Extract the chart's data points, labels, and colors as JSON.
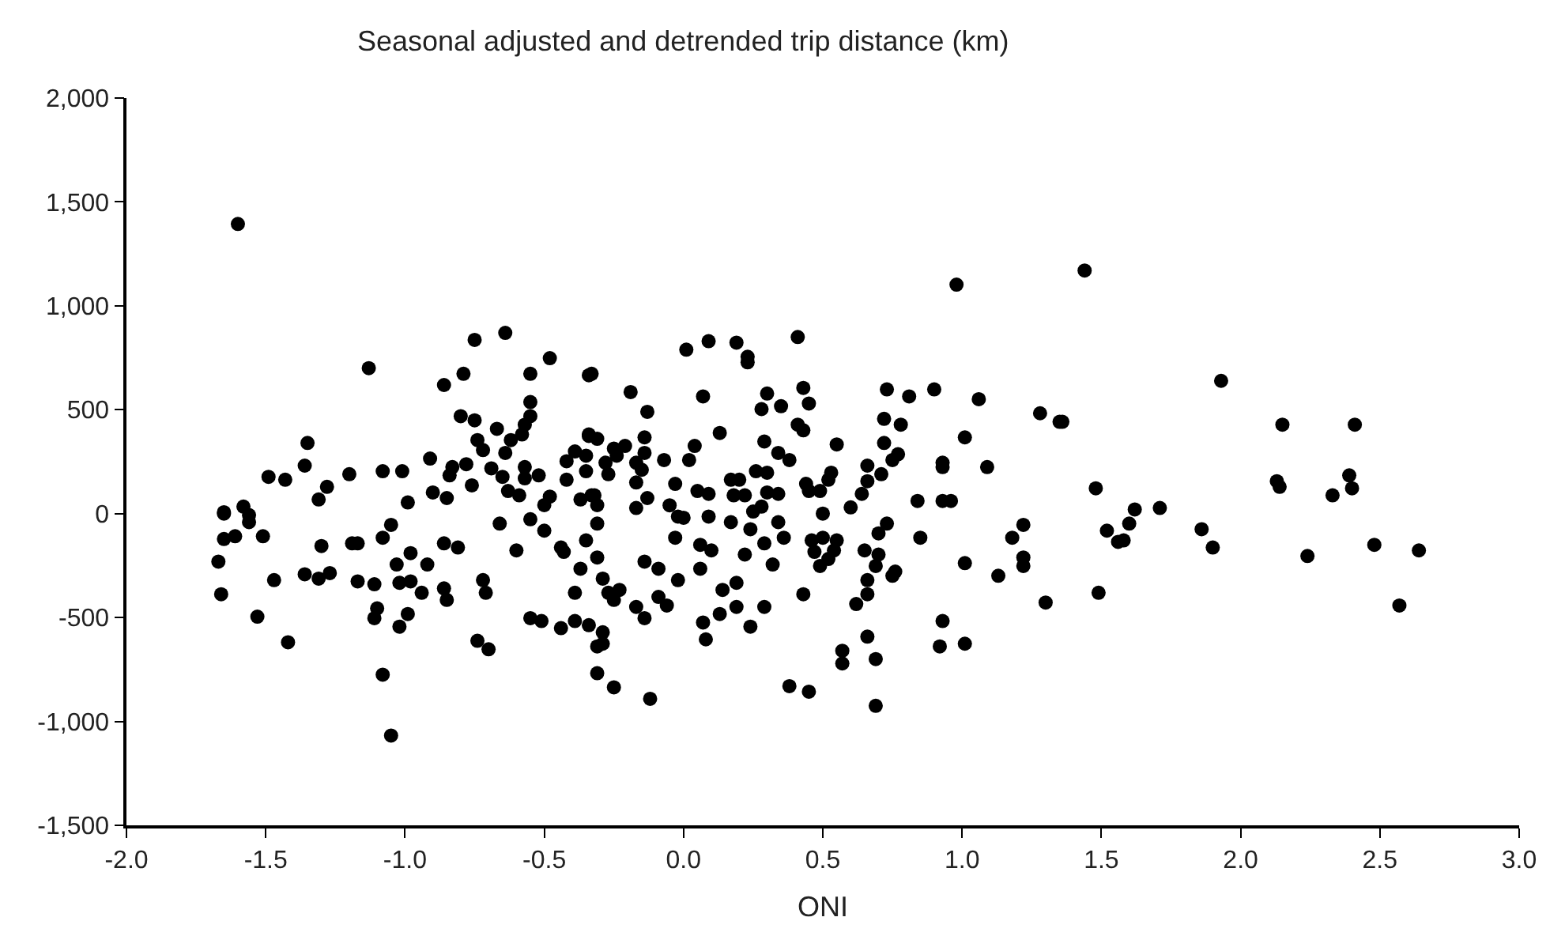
{
  "chart_data": {
    "type": "scatter",
    "ylabel": "Seasonal adjusted and detrended trip distance (km)",
    "xlabel": "ONI",
    "xlim": [
      -2,
      3
    ],
    "ylim": [
      -1500,
      2000
    ],
    "xticks": [
      {
        "value": -2,
        "label": "-2.0"
      },
      {
        "value": -1.5,
        "label": "-1.5"
      },
      {
        "value": -1,
        "label": "-1.0"
      },
      {
        "value": -0.5,
        "label": "-0.5"
      },
      {
        "value": 0,
        "label": "0.0"
      },
      {
        "value": 0.5,
        "label": "0.5"
      },
      {
        "value": 1,
        "label": "1.0"
      },
      {
        "value": 1.5,
        "label": "1.5"
      },
      {
        "value": 2,
        "label": "2.0"
      },
      {
        "value": 2.5,
        "label": "2.5"
      },
      {
        "value": 3,
        "label": "3.0"
      }
    ],
    "yticks": [
      {
        "value": -1500,
        "label": "-1,500"
      },
      {
        "value": -1000,
        "label": "-1,000"
      },
      {
        "value": -500,
        "label": "-500"
      },
      0,
      500,
      {
        "value": 1000,
        "label": "1,000"
      },
      {
        "value": 1500,
        "label": "1,500"
      },
      {
        "value": 2000,
        "label": "2,000"
      }
    ],
    "marker": "circle",
    "series": [
      {
        "color": "#000000",
        "x": [
          -1.6,
          -1.13,
          -0.75,
          -0.64,
          -0.48,
          -0.79,
          -0.86,
          -0.55,
          -0.33,
          -0.55,
          -0.55,
          -0.8,
          -0.75,
          -0.67,
          -0.57,
          -0.58,
          -0.62,
          -0.74,
          -0.72,
          -0.64,
          -1.35,
          -1.36,
          -1.49,
          -1.43,
          -1.31,
          -1.28,
          -1.2,
          -1.08,
          -1.01,
          -0.99,
          -0.91,
          -0.83,
          -0.78,
          -0.84,
          -0.76,
          -0.9,
          -0.85,
          -0.69,
          -0.65,
          -0.63,
          -0.59,
          -0.57,
          -0.57,
          -0.52,
          -0.42,
          -0.39,
          -0.35,
          -0.42,
          -0.35,
          -0.34,
          -0.48,
          -0.5,
          -0.37,
          -0.32,
          -1.58,
          -1.65,
          -1.56,
          -0.34,
          -0.19,
          -0.13,
          -0.34,
          -0.31,
          -0.14,
          -0.25,
          -0.21,
          -0.24,
          -0.28,
          -0.27,
          -0.14,
          -0.17,
          -0.15,
          -0.07,
          -0.17,
          -0.13,
          -0.03,
          -0.33,
          -0.31,
          -0.17,
          0.01,
          0.09,
          0.07,
          0.04,
          0.02,
          0.13,
          0.05,
          0.09,
          0.17,
          0.2,
          0.18,
          0.22,
          0.19,
          0.23,
          0.23,
          0.3,
          0.28,
          0.35,
          0.29,
          0.34,
          0.38,
          0.26,
          0.3,
          0.3,
          0.34,
          0.28,
          0.41,
          0.43,
          0.45,
          0.41,
          0.43,
          0.44,
          0.45,
          0.49,
          0.53,
          0.55,
          0.52,
          0.64,
          0.66,
          0.66,
          0.71,
          0.72,
          0.72,
          0.73,
          0.78,
          0.81,
          0.75,
          0.77,
          0.9,
          0.84,
          0.93,
          0.93,
          0.93,
          0.96,
          0.98,
          1.01,
          1.06,
          1.09,
          1.28,
          1.35,
          1.44,
          1.93,
          1.36,
          2.15,
          2.41,
          1.48,
          2.13,
          2.14,
          2.39,
          2.4,
          2.33,
          1.62,
          1.71,
          -1.65,
          -1.56,
          -1.65,
          -1.61,
          -1.51,
          -1.67,
          -1.66,
          -1.47,
          -1.53,
          -1.42,
          -1.36,
          -1.31,
          -1.27,
          -1.3,
          -1.19,
          -1.17,
          -1.17,
          -1.11,
          -1.1,
          -1.11,
          -1.08,
          -1.05,
          -1.05,
          -1.08,
          -1.03,
          -0.98,
          -1.02,
          -0.98,
          -0.99,
          -1.02,
          -0.94,
          -0.92,
          -0.86,
          -0.81,
          -0.86,
          -0.85,
          -0.72,
          -0.71,
          -0.74,
          -0.7,
          -0.66,
          -0.6,
          -0.55,
          -0.51,
          -0.44,
          -0.39,
          -0.34,
          -0.55,
          -0.5,
          -0.44,
          -0.43,
          -0.39,
          -0.37,
          -0.35,
          -0.31,
          -0.31,
          -0.31,
          -0.31,
          -0.29,
          -0.27,
          -0.23,
          -0.25,
          -0.29,
          -0.29,
          -0.25,
          -0.12,
          -0.17,
          -0.14,
          -0.14,
          -0.09,
          -0.09,
          -0.06,
          -0.02,
          -0.03,
          -0.02,
          0.09,
          0.1,
          0.06,
          0.06,
          0.07,
          0.08,
          0.13,
          0.19,
          0.14,
          0.19,
          0.22,
          0.17,
          0.24,
          0.29,
          0.32,
          0.29,
          0.24,
          0.36,
          0.34,
          0.43,
          0.46,
          0.5,
          0.47,
          0.49,
          0.54,
          0.55,
          0.52,
          0.38,
          0.45,
          0.57,
          0.57,
          0.65,
          0.7,
          0.69,
          0.66,
          0.66,
          0.62,
          0.66,
          0.69,
          0.69,
          0.76,
          0.75,
          0.7,
          0.73,
          0.85,
          1.01,
          0.93,
          0.92,
          1.01,
          1.13,
          1.18,
          1.22,
          1.22,
          1.22,
          1.3,
          1.49,
          1.52,
          1.56,
          1.58,
          1.6,
          1.86,
          1.9,
          2.24,
          2.48,
          2.64,
          2.57,
          0.0,
          0.25,
          0.5,
          0.6,
          -0.05
        ],
        "values": [
          1394,
          700,
          836,
          870,
          748,
          673,
          619,
          673,
          673,
          537,
          469,
          469,
          449,
          408,
          428,
          381,
          354,
          354,
          306,
          292,
          340,
          231,
          177,
          163,
          68,
          129,
          190,
          204,
          204,
          54,
          265,
          224,
          238,
          184,
          136,
          102,
          75,
          218,
          177,
          109,
          88,
          224,
          170,
          184,
          252,
          299,
          279,
          163,
          204,
          374,
          82,
          41,
          68,
          88,
          34,
          7,
          -7,
          666,
          585,
          490,
          381,
          360,
          367,
          313,
          326,
          279,
          245,
          190,
          292,
          245,
          211,
          258,
          150,
          75,
          143,
          88,
          41,
          27,
          789,
          830,
          564,
          326,
          258,
          388,
          109,
          95,
          163,
          163,
          88,
          88,
          823,
          755,
          728,
          578,
          503,
          517,
          347,
          292,
          258,
          204,
          197,
          102,
          95,
          34,
          850,
          605,
          530,
          428,
          401,
          143,
          109,
          109,
          197,
          333,
          163,
          95,
          156,
          231,
          190,
          340,
          456,
          598,
          428,
          564,
          258,
          286,
          598,
          61,
          245,
          224,
          61,
          61,
          1102,
          367,
          551,
          224,
          483,
          442,
          1170,
          639,
          442,
          428,
          428,
          122,
          156,
          129,
          184,
          122,
          88,
          20,
          27,
          0,
          -41,
          -122,
          -109,
          -109,
          -231,
          -388,
          -320,
          -496,
          -619,
          -292,
          -313,
          -286,
          -156,
          -143,
          -143,
          -326,
          -340,
          -456,
          -503,
          -775,
          -1068,
          -54,
          -116,
          -245,
          -190,
          -333,
          -326,
          -483,
          -544,
          -381,
          -245,
          -143,
          -163,
          -360,
          -415,
          -320,
          -381,
          -612,
          -653,
          -48,
          -177,
          -503,
          -517,
          -551,
          -517,
          -537,
          -27,
          -82,
          -163,
          -184,
          -381,
          -265,
          -129,
          -639,
          -768,
          -48,
          -211,
          -313,
          -381,
          -367,
          -415,
          -571,
          -626,
          -836,
          -891,
          -449,
          -503,
          -231,
          -265,
          -401,
          -442,
          -320,
          -116,
          -14,
          -14,
          -177,
          -150,
          -265,
          -524,
          -605,
          -483,
          -449,
          -367,
          -333,
          -197,
          -41,
          -75,
          -143,
          -245,
          -449,
          -544,
          -116,
          -41,
          -388,
          -129,
          -116,
          -184,
          -252,
          -177,
          -129,
          -218,
          -830,
          -857,
          -660,
          -721,
          -177,
          -197,
          -252,
          -320,
          -388,
          -435,
          -592,
          -700,
          -925,
          -279,
          -299,
          -95,
          -48,
          -116,
          -238,
          -517,
          -639,
          -626,
          -299,
          -116,
          -54,
          -211,
          -252,
          -428,
          -381,
          -82,
          -136,
          -129,
          -48,
          -75,
          -163,
          -204,
          -150,
          -177,
          -442,
          -20,
          10,
          0,
          30,
          40
        ]
      }
    ]
  }
}
